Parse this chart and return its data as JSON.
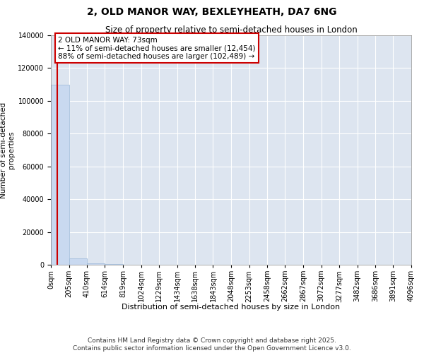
{
  "title": "2, OLD MANOR WAY, BEXLEYHEATH, DA7 6NG",
  "subtitle": "Size of property relative to semi-detached houses in London",
  "xlabel": "Distribution of semi-detached houses by size in London",
  "ylabel": "Number of semi-detached\nproperties",
  "property_size": 73,
  "annotation_text": "2 OLD MANOR WAY: 73sqm\n← 11% of semi-detached houses are smaller (12,454)\n88% of semi-detached houses are larger (102,489) →",
  "bar_color": "#c9d9f0",
  "bar_edge_color": "#9ab8d8",
  "vline_color": "#cc0000",
  "background_color": "#dde5f0",
  "ylim": [
    0,
    140000
  ],
  "yticks": [
    0,
    20000,
    40000,
    60000,
    80000,
    100000,
    120000,
    140000
  ],
  "bin_edges": [
    0,
    205,
    410,
    614,
    819,
    1024,
    1229,
    1434,
    1638,
    1843,
    2048,
    2253,
    2458,
    2662,
    2867,
    3072,
    3277,
    3482,
    3686,
    3891,
    4096
  ],
  "bin_labels": [
    "0sqm",
    "205sqm",
    "410sqm",
    "614sqm",
    "819sqm",
    "1024sqm",
    "1229sqm",
    "1434sqm",
    "1638sqm",
    "1843sqm",
    "2048sqm",
    "2253sqm",
    "2458sqm",
    "2662sqm",
    "2867sqm",
    "3072sqm",
    "3277sqm",
    "3482sqm",
    "3686sqm",
    "3891sqm",
    "4096sqm"
  ],
  "bar_heights": [
    110000,
    4000,
    800,
    300,
    150,
    80,
    50,
    30,
    20,
    15,
    10,
    8,
    6,
    5,
    4,
    3,
    3,
    2,
    2,
    1
  ],
  "footer_text": "Contains HM Land Registry data © Crown copyright and database right 2025.\nContains public sector information licensed under the Open Government Licence v3.0.",
  "title_fontsize": 10,
  "subtitle_fontsize": 8.5,
  "tick_fontsize": 7,
  "ylabel_fontsize": 7.5,
  "xlabel_fontsize": 8,
  "annotation_fontsize": 7.5,
  "footer_fontsize": 6.5
}
